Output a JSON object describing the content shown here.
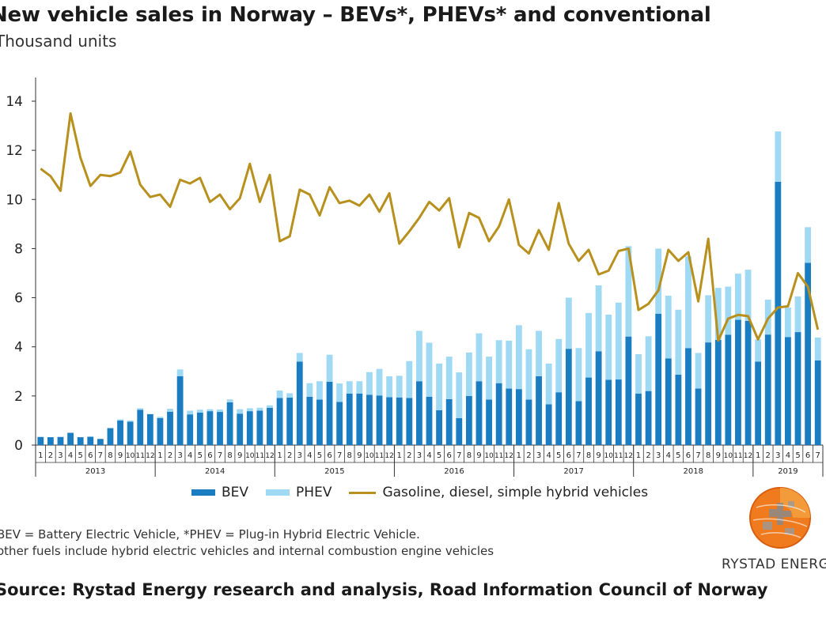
{
  "header": {
    "title": "New vehicle sales in Norway – BEVs*, PHEVs* and conventional",
    "subtitle": "Thousand units"
  },
  "notes": [
    "BEV = Battery Electric Vehicle, *PHEV = Plug-in Hybrid Electric Vehicle.",
    "other fuels include hybrid electric vehicles and internal combustion engine vehicles"
  ],
  "source": "Source: Rystad Energy research and analysis, Road Information Council of Norway",
  "logo": {
    "text": "RYSTAD ENERGY",
    "icon": "globe-logo-icon"
  },
  "colors": {
    "bev": "#1a7dc2",
    "phev": "#9fd9f4",
    "conventional": "#b8901e",
    "axis": "#333333"
  },
  "chart_data": {
    "type": "bar",
    "title": "New vehicle sales in Norway – BEVs*, PHEVs* and conventional",
    "ylabel": "Thousand units",
    "ylim": [
      0,
      14
    ],
    "yticks": [
      0,
      2,
      4,
      6,
      8,
      10,
      12,
      14
    ],
    "grid": false,
    "legend_position": "bottom",
    "years": [
      {
        "label": "2013",
        "months": 12
      },
      {
        "label": "2014",
        "months": 12
      },
      {
        "label": "2015",
        "months": 12
      },
      {
        "label": "2016",
        "months": 12
      },
      {
        "label": "2017",
        "months": 12
      },
      {
        "label": "2018",
        "months": 12
      },
      {
        "label": "2019",
        "months": 7
      }
    ],
    "categories": [
      "1",
      "2",
      "3",
      "4",
      "5",
      "6",
      "7",
      "8",
      "9",
      "10",
      "11",
      "12",
      "1",
      "2",
      "3",
      "4",
      "5",
      "6",
      "7",
      "8",
      "9",
      "10",
      "11",
      "12",
      "1",
      "2",
      "3",
      "4",
      "5",
      "6",
      "7",
      "8",
      "9",
      "10",
      "11",
      "12",
      "1",
      "2",
      "3",
      "4",
      "5",
      "6",
      "7",
      "8",
      "9",
      "10",
      "11",
      "12",
      "1",
      "2",
      "3",
      "4",
      "5",
      "6",
      "7",
      "8",
      "9",
      "10",
      "11",
      "12",
      "1",
      "2",
      "3",
      "4",
      "5",
      "6",
      "7",
      "8",
      "9",
      "10",
      "11",
      "12",
      "1",
      "2",
      "3",
      "4",
      "5",
      "6",
      "7"
    ],
    "series": [
      {
        "name": "BEV",
        "type": "bar",
        "stack": "ev",
        "values": [
          0.33,
          0.32,
          0.33,
          0.5,
          0.32,
          0.34,
          0.25,
          0.69,
          1.0,
          0.95,
          1.44,
          1.26,
          1.1,
          1.36,
          2.8,
          1.25,
          1.32,
          1.38,
          1.35,
          1.74,
          1.28,
          1.38,
          1.4,
          1.52,
          1.92,
          1.93,
          3.4,
          1.97,
          1.85,
          2.58,
          1.76,
          2.1,
          2.1,
          2.05,
          2.02,
          1.95,
          1.94,
          1.92,
          2.6,
          1.97,
          1.42,
          1.87,
          1.1,
          2.0,
          2.6,
          1.85,
          2.52,
          2.3,
          2.28,
          1.85,
          2.8,
          1.66,
          2.15,
          3.92,
          1.79,
          2.75,
          3.82,
          2.66,
          2.67,
          4.42,
          2.1,
          2.2,
          5.35,
          3.53,
          2.87,
          3.95,
          2.3,
          4.18,
          4.28,
          4.49,
          5.1,
          5.06,
          3.4,
          4.5,
          10.72,
          4.4,
          4.6,
          7.42,
          3.45
        ]
      },
      {
        "name": "PHEV",
        "type": "bar",
        "stack": "ev",
        "values": [
          0.0,
          0.0,
          0.0,
          0.0,
          0.0,
          0.0,
          0.0,
          0.0,
          0.05,
          0.05,
          0.06,
          0.0,
          0.05,
          0.12,
          0.28,
          0.15,
          0.12,
          0.08,
          0.1,
          0.12,
          0.18,
          0.12,
          0.12,
          0.1,
          0.3,
          0.18,
          0.35,
          0.55,
          0.75,
          1.1,
          0.75,
          0.5,
          0.5,
          0.92,
          1.08,
          0.85,
          0.88,
          1.5,
          2.05,
          2.2,
          1.9,
          1.73,
          1.86,
          1.77,
          1.95,
          1.75,
          1.75,
          1.95,
          2.6,
          2.05,
          1.85,
          1.66,
          2.17,
          2.08,
          2.16,
          2.63,
          2.68,
          2.65,
          3.13,
          3.68,
          1.6,
          2.23,
          2.65,
          2.55,
          2.64,
          3.73,
          1.45,
          1.92,
          2.12,
          1.96,
          1.88,
          2.08,
          0.9,
          1.42,
          2.05,
          1.2,
          1.45,
          1.45,
          0.93
        ]
      },
      {
        "name": "Gasoline, diesel, simple hybrid vehicles",
        "type": "line",
        "values": [
          11.25,
          10.95,
          10.35,
          13.5,
          11.7,
          10.55,
          11.0,
          10.95,
          11.1,
          11.95,
          10.6,
          10.1,
          10.2,
          9.7,
          10.8,
          10.65,
          10.88,
          9.9,
          10.2,
          9.6,
          10.05,
          11.45,
          9.9,
          11.0,
          8.3,
          8.5,
          10.4,
          10.2,
          9.35,
          10.5,
          9.85,
          9.95,
          9.75,
          10.2,
          9.5,
          10.25,
          8.2,
          8.7,
          9.25,
          9.9,
          9.55,
          10.05,
          8.05,
          9.45,
          9.25,
          8.3,
          8.9,
          10.0,
          8.15,
          7.8,
          8.75,
          7.95,
          9.85,
          8.2,
          7.5,
          7.95,
          6.95,
          7.1,
          7.9,
          8.0,
          5.5,
          5.75,
          6.3,
          7.95,
          7.5,
          7.85,
          5.85,
          8.4,
          4.25,
          5.15,
          5.3,
          5.25,
          4.3,
          5.15,
          5.6,
          5.65,
          7.0,
          6.45,
          4.7
        ]
      }
    ]
  }
}
